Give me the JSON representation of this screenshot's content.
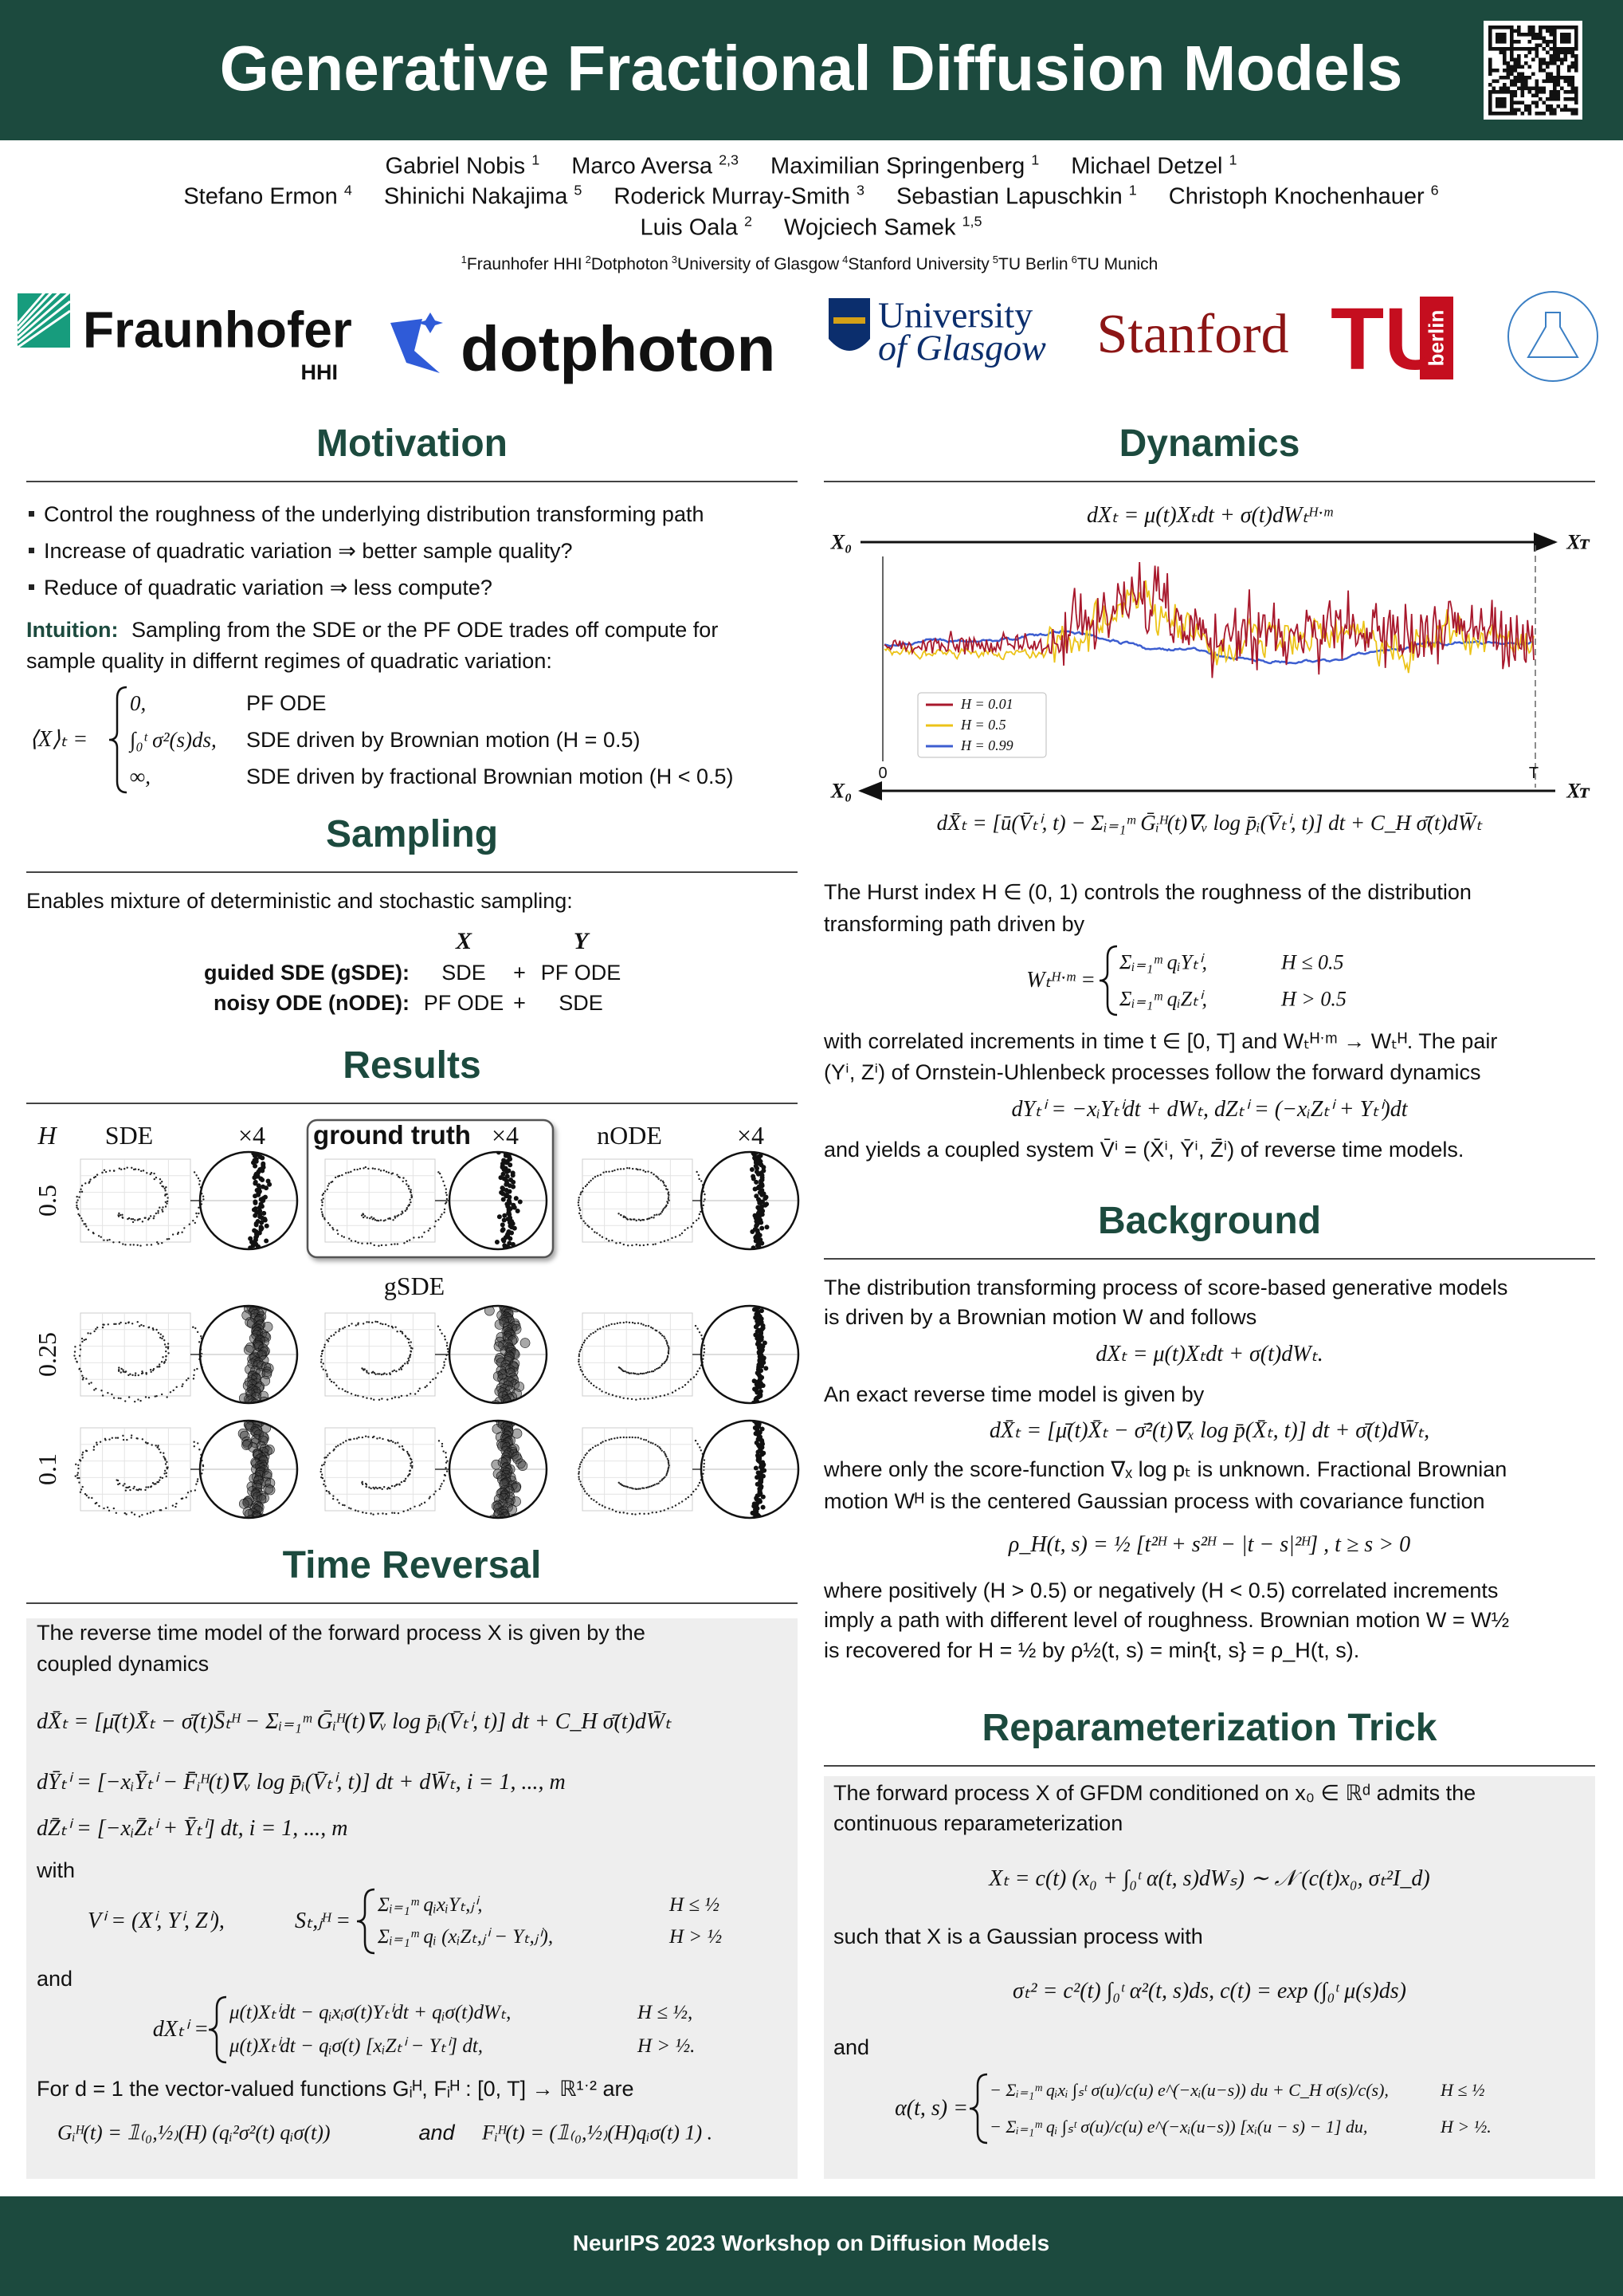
{
  "header": {
    "title": "Generative Fractional Diffusion Models"
  },
  "authors": [
    {
      "name": "Gabriel Nobis",
      "aff": "1"
    },
    {
      "name": "Marco Aversa",
      "aff": "2,3"
    },
    {
      "name": "Maximilian Springenberg",
      "aff": "1"
    },
    {
      "name": "Michael Detzel",
      "aff": "1"
    },
    {
      "name": "Stefano Ermon",
      "aff": "4"
    },
    {
      "name": "Shinichi Nakajima",
      "aff": "5"
    },
    {
      "name": "Roderick Murray-Smith",
      "aff": "3"
    },
    {
      "name": "Sebastian Lapuschkin",
      "aff": "1"
    },
    {
      "name": "Christoph Knochenhauer",
      "aff": "6"
    },
    {
      "name": "Luis Oala",
      "aff": "2"
    },
    {
      "name": "Wojciech Samek",
      "aff": "1,5"
    }
  ],
  "affiliations": [
    {
      "num": "1",
      "name": "Fraunhofer HHI"
    },
    {
      "num": "2",
      "name": "Dotphoton"
    },
    {
      "num": "3",
      "name": "University of Glasgow"
    },
    {
      "num": "4",
      "name": "Stanford University"
    },
    {
      "num": "5",
      "name": "TU Berlin"
    },
    {
      "num": "6",
      "name": "TU Munich"
    }
  ],
  "logos": {
    "fraunhofer": "Fraunhofer",
    "hhi": "HHI",
    "dotphoton": "dotphoton",
    "glasgow_1": "University",
    "glasgow_2": "of Glasgow",
    "stanford": "Stanford",
    "tu": "TU",
    "berlin": "berlin"
  },
  "motivation": {
    "heading": "Motivation",
    "bullets": [
      "Control the roughness of the underlying distribution transforming path",
      "Increase of quadratic variation ⇒ better sample quality?",
      "Reduce of quadratic variation ⇒ less compute?"
    ],
    "intuition_label": "Intuition:",
    "intuition_lines": [
      "Sampling from the SDE or the PF ODE trades off compute for",
      "sample quality in differnt regimes of quadratic variation:"
    ],
    "formula_lhs": "⟨X⟩ₜ =",
    "cases": [
      {
        "value": "0,",
        "desc": "PF ODE"
      },
      {
        "value": "∫₀ᵗ σ²(s)ds,",
        "desc": "SDE driven by Brownian motion (H = 0.5)"
      },
      {
        "value": "∞,",
        "desc": "SDE driven by fractional Brownian motion (H < 0.5)"
      }
    ]
  },
  "sampling": {
    "heading": "Sampling",
    "text": "Enables mixture of deterministic and stochastic sampling:",
    "columns": [
      "X",
      "Y"
    ],
    "rows": [
      [
        "guided SDE (gSDE):",
        "SDE",
        "+",
        "PF ODE"
      ],
      [
        "noisy ODE (nODE):",
        "PF ODE",
        "+",
        "SDE"
      ]
    ]
  },
  "results": {
    "heading": "Results",
    "h_label": "H",
    "columns": [
      "SDE",
      "×4",
      "ground truth",
      "×4",
      "nODE",
      "×4"
    ],
    "gsde_label": "gSDE",
    "rows": [
      "0.5",
      "0.25",
      "0.1"
    ]
  },
  "time_reversal": {
    "heading": "Time Reversal",
    "intro": [
      "The reverse time model of the forward process X is given by the",
      "coupled dynamics"
    ],
    "eq_x": "dX̄ₜ = [μ̄(t)X̄ₜ − σ̄(t)S̄ₜᴴ − Σᵢ₌₁ᵐ Ḡᵢᴴ(t)∇ᵥ log p̄ᵢ(V̄ₜⁱ, t)] dt + C_H σ̄(t)dW̄ₜ",
    "eq_y": "dȲₜⁱ = [−xᵢȲₜⁱ − F̄ᵢᴴ(t)∇ᵥ log p̄ᵢ(V̄ₜⁱ, t)] dt + dW̄ₜ,    i = 1, ..., m",
    "eq_z": "dZ̄ₜⁱ = [−xᵢZ̄ₜⁱ + Ȳₜⁱ] dt,    i = 1, ..., m",
    "with": "with",
    "eq_v": "Vⁱ = (Xⁱ, Yⁱ, Zⁱ),",
    "eq_s_lhs": "Sₜ,ⱼᴴ =",
    "s_cases": [
      [
        "Σᵢ₌₁ᵐ qᵢxᵢYₜ,ⱼⁱ,",
        "H ≤ ½"
      ],
      [
        "Σᵢ₌₁ᵐ qᵢ (xᵢZₜ,ⱼⁱ − Yₜ,ⱼⁱ),",
        "H > ½"
      ]
    ],
    "and": "and",
    "eq_dx_lhs": "dXₜⁱ =",
    "dx_cases": [
      [
        "μ(t)Xₜⁱdt − qᵢxᵢσ(t)Yₜⁱdt + qᵢσ(t)dWₜ,",
        "H ≤ ½,"
      ],
      [
        "μ(t)Xₜⁱdt − qᵢσ(t) [xᵢZₜⁱ − Yₜⁱ] dt,",
        "H > ½."
      ]
    ],
    "for_text": "For d = 1 the vector-valued functions Gᵢᴴ, Fᵢᴴ : [0, T] → ℝ¹ˑ² are",
    "eq_g": "Gᵢᴴ(t) = 𝟙₍₀,½₎(H) (qᵢ²σ²(t)  qᵢσ(t))",
    "eq_and": "and",
    "eq_f": "Fᵢᴴ(t) = (𝟙₍₀,½₎(H)qᵢσ(t)  1) ."
  },
  "dynamics": {
    "heading": "Dynamics",
    "eq_forward": "dXₜ = μ(t)Xₜdt + σ(t)dWₜᴴˑᵐ",
    "figure": {
      "start_label": "X₀",
      "end_label": "Xᴛ",
      "x_start": "0",
      "x_end": "T",
      "series": [
        {
          "name": "H = 0.01",
          "color": "#a8182c"
        },
        {
          "name": "H = 0.5",
          "color": "#ecc318"
        },
        {
          "name": "H = 0.99",
          "color": "#3d5ed0"
        }
      ]
    },
    "eq_reverse": "dX̄ₜ = [ū(V̄ₜⁱ, t) − Σᵢ₌₁ᵐ Ḡᵢᴴ(t)∇ᵥ log p̄ᵢ(V̄ₜⁱ, t)] dt + C_H σ̄(t)dW̄ₜ",
    "hurst_lines": [
      "The Hurst index H ∈ (0, 1) controls the roughness of the distribution",
      "transforming path driven by"
    ],
    "eq_w_lhs": "Wₜᴴˑᵐ =",
    "w_cases": [
      [
        "Σᵢ₌₁ᵐ qᵢYₜⁱ,",
        "H ≤ 0.5"
      ],
      [
        "Σᵢ₌₁ᵐ qᵢZₜⁱ,",
        "H > 0.5"
      ]
    ],
    "corr_lines": [
      "with correlated increments in time t ∈ [0, T] and Wₜᴴˑᵐ → Wₜᴴ. The pair",
      "(Yⁱ, Zⁱ) of Ornstein-Uhlenbeck processes follow the forward dynamics"
    ],
    "eq_ou": "dYₜⁱ = −xᵢYₜⁱdt + dWₜ,    dZₜⁱ = (−xᵢZₜⁱ + Yₜⁱ)dt",
    "coupled": "and yields a coupled system V̄ⁱ = (X̄ⁱ, Ȳⁱ, Z̄ⁱ) of reverse time models."
  },
  "background": {
    "heading": "Background",
    "lines": [
      "The distribution transforming process of score-based generative models",
      "is driven by a Brownian motion W and follows",
      "An exact reverse time model is given by",
      "where only the score-function ∇ₓ log pₜ is unknown.  Fractional Brownian",
      "motion Wᴴ is the centered Gaussian process with covariance function",
      "where positively (H > 0.5) or negatively (H < 0.5) correlated increments",
      "imply a path with different level of roughness.  Brownian motion W = W½",
      "is recovered for H = ½ by ρ½(t, s) = min{t, s} = ρ_H(t, s)."
    ],
    "equations": [
      "dXₜ = μ(t)Xₜdt + σ(t)dWₜ.",
      "dX̄ₜ = [μ̄(t)X̄ₜ − σ̄²(t)∇ₓ log p̄(X̄ₜ, t)] dt + σ̄(t)dW̄ₜ,",
      "ρ_H(t, s) = ½ [t²ᴴ + s²ᴴ − |t − s|²ᴴ] ,    t ≥ s > 0"
    ]
  },
  "reparameterization": {
    "heading": "Reparameterization Trick",
    "lines": [
      "The forward process X of GFDM conditioned on x₀ ∈ ℝᵈ admits the",
      "continuous reparameterization",
      "such that X is a Gaussian process with",
      "and"
    ],
    "equations": [
      "Xₜ = c(t) (x₀ + ∫₀ᵗ α(t, s)dWₛ) ∼ 𝒩 (c(t)x₀, σₜ²I_d)",
      "σₜ² = c²(t) ∫₀ᵗ α²(t, s)ds,     c(t) = exp (∫₀ᵗ μ(s)ds)"
    ],
    "alpha_lhs": "α(t, s) =",
    "alpha_cases": [
      [
        "− Σᵢ₌₁ᵐ qᵢxᵢ ∫ₛᵗ σ(u)/c(u) e^(−xᵢ(u−s)) du + C_H σ(s)/c(s),",
        "H ≤ ½"
      ],
      [
        "− Σᵢ₌₁ᵐ qᵢ ∫ₛᵗ σ(u)/c(u) e^(−xᵢ(u−s)) [xᵢ(u − s) − 1] du,",
        "H > ½."
      ]
    ]
  },
  "footer": {
    "text": "NeurIPS 2023 Workshop on Diffusion Models"
  }
}
